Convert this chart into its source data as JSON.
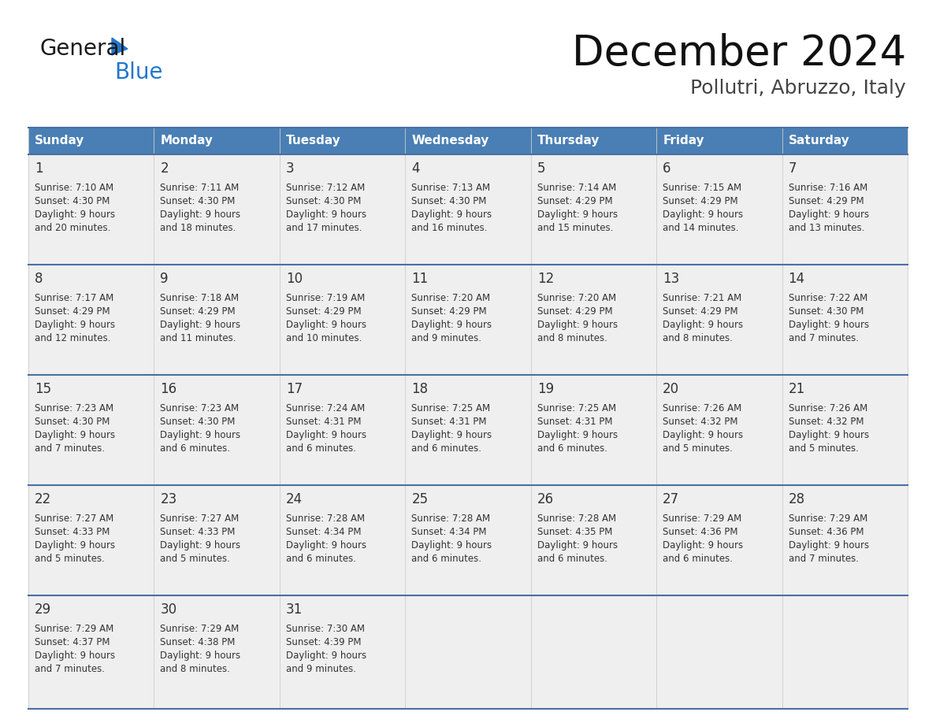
{
  "title": "December 2024",
  "subtitle": "Pollutri, Abruzzo, Italy",
  "header_color": "#4a7fb5",
  "header_text_color": "#ffffff",
  "days_of_week": [
    "Sunday",
    "Monday",
    "Tuesday",
    "Wednesday",
    "Thursday",
    "Friday",
    "Saturday"
  ],
  "weeks": [
    [
      {
        "day": 1,
        "sunrise": "7:10 AM",
        "sunset": "4:30 PM",
        "daylight_hours": 9,
        "daylight_minutes": 20
      },
      {
        "day": 2,
        "sunrise": "7:11 AM",
        "sunset": "4:30 PM",
        "daylight_hours": 9,
        "daylight_minutes": 18
      },
      {
        "day": 3,
        "sunrise": "7:12 AM",
        "sunset": "4:30 PM",
        "daylight_hours": 9,
        "daylight_minutes": 17
      },
      {
        "day": 4,
        "sunrise": "7:13 AM",
        "sunset": "4:30 PM",
        "daylight_hours": 9,
        "daylight_minutes": 16
      },
      {
        "day": 5,
        "sunrise": "7:14 AM",
        "sunset": "4:29 PM",
        "daylight_hours": 9,
        "daylight_minutes": 15
      },
      {
        "day": 6,
        "sunrise": "7:15 AM",
        "sunset": "4:29 PM",
        "daylight_hours": 9,
        "daylight_minutes": 14
      },
      {
        "day": 7,
        "sunrise": "7:16 AM",
        "sunset": "4:29 PM",
        "daylight_hours": 9,
        "daylight_minutes": 13
      }
    ],
    [
      {
        "day": 8,
        "sunrise": "7:17 AM",
        "sunset": "4:29 PM",
        "daylight_hours": 9,
        "daylight_minutes": 12
      },
      {
        "day": 9,
        "sunrise": "7:18 AM",
        "sunset": "4:29 PM",
        "daylight_hours": 9,
        "daylight_minutes": 11
      },
      {
        "day": 10,
        "sunrise": "7:19 AM",
        "sunset": "4:29 PM",
        "daylight_hours": 9,
        "daylight_minutes": 10
      },
      {
        "day": 11,
        "sunrise": "7:20 AM",
        "sunset": "4:29 PM",
        "daylight_hours": 9,
        "daylight_minutes": 9
      },
      {
        "day": 12,
        "sunrise": "7:20 AM",
        "sunset": "4:29 PM",
        "daylight_hours": 9,
        "daylight_minutes": 8
      },
      {
        "day": 13,
        "sunrise": "7:21 AM",
        "sunset": "4:29 PM",
        "daylight_hours": 9,
        "daylight_minutes": 8
      },
      {
        "day": 14,
        "sunrise": "7:22 AM",
        "sunset": "4:30 PM",
        "daylight_hours": 9,
        "daylight_minutes": 7
      }
    ],
    [
      {
        "day": 15,
        "sunrise": "7:23 AM",
        "sunset": "4:30 PM",
        "daylight_hours": 9,
        "daylight_minutes": 7
      },
      {
        "day": 16,
        "sunrise": "7:23 AM",
        "sunset": "4:30 PM",
        "daylight_hours": 9,
        "daylight_minutes": 6
      },
      {
        "day": 17,
        "sunrise": "7:24 AM",
        "sunset": "4:31 PM",
        "daylight_hours": 9,
        "daylight_minutes": 6
      },
      {
        "day": 18,
        "sunrise": "7:25 AM",
        "sunset": "4:31 PM",
        "daylight_hours": 9,
        "daylight_minutes": 6
      },
      {
        "day": 19,
        "sunrise": "7:25 AM",
        "sunset": "4:31 PM",
        "daylight_hours": 9,
        "daylight_minutes": 6
      },
      {
        "day": 20,
        "sunrise": "7:26 AM",
        "sunset": "4:32 PM",
        "daylight_hours": 9,
        "daylight_minutes": 5
      },
      {
        "day": 21,
        "sunrise": "7:26 AM",
        "sunset": "4:32 PM",
        "daylight_hours": 9,
        "daylight_minutes": 5
      }
    ],
    [
      {
        "day": 22,
        "sunrise": "7:27 AM",
        "sunset": "4:33 PM",
        "daylight_hours": 9,
        "daylight_minutes": 5
      },
      {
        "day": 23,
        "sunrise": "7:27 AM",
        "sunset": "4:33 PM",
        "daylight_hours": 9,
        "daylight_minutes": 5
      },
      {
        "day": 24,
        "sunrise": "7:28 AM",
        "sunset": "4:34 PM",
        "daylight_hours": 9,
        "daylight_minutes": 6
      },
      {
        "day": 25,
        "sunrise": "7:28 AM",
        "sunset": "4:34 PM",
        "daylight_hours": 9,
        "daylight_minutes": 6
      },
      {
        "day": 26,
        "sunrise": "7:28 AM",
        "sunset": "4:35 PM",
        "daylight_hours": 9,
        "daylight_minutes": 6
      },
      {
        "day": 27,
        "sunrise": "7:29 AM",
        "sunset": "4:36 PM",
        "daylight_hours": 9,
        "daylight_minutes": 6
      },
      {
        "day": 28,
        "sunrise": "7:29 AM",
        "sunset": "4:36 PM",
        "daylight_hours": 9,
        "daylight_minutes": 7
      }
    ],
    [
      {
        "day": 29,
        "sunrise": "7:29 AM",
        "sunset": "4:37 PM",
        "daylight_hours": 9,
        "daylight_minutes": 7
      },
      {
        "day": 30,
        "sunrise": "7:29 AM",
        "sunset": "4:38 PM",
        "daylight_hours": 9,
        "daylight_minutes": 8
      },
      {
        "day": 31,
        "sunrise": "7:30 AM",
        "sunset": "4:39 PM",
        "daylight_hours": 9,
        "daylight_minutes": 9
      },
      null,
      null,
      null,
      null
    ]
  ],
  "bg_color": "#ffffff",
  "cell_bg": "#efefef",
  "row_sep_color": "#4a6fa5",
  "text_color": "#333333",
  "logo_general_color": "#1a1a1a",
  "logo_blue_color": "#2277cc",
  "title_color": "#111111",
  "subtitle_color": "#444444"
}
